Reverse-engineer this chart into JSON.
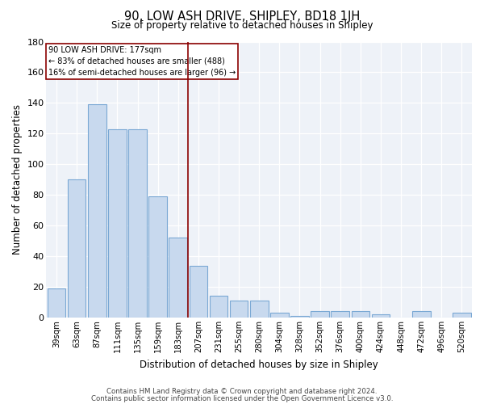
{
  "title": "90, LOW ASH DRIVE, SHIPLEY, BD18 1JH",
  "subtitle": "Size of property relative to detached houses in Shipley",
  "xlabel": "Distribution of detached houses by size in Shipley",
  "ylabel": "Number of detached properties",
  "categories": [
    "39sqm",
    "63sqm",
    "87sqm",
    "111sqm",
    "135sqm",
    "159sqm",
    "183sqm",
    "207sqm",
    "231sqm",
    "255sqm",
    "280sqm",
    "304sqm",
    "328sqm",
    "352sqm",
    "376sqm",
    "400sqm",
    "424sqm",
    "448sqm",
    "472sqm",
    "496sqm",
    "520sqm"
  ],
  "values": [
    19,
    90,
    139,
    123,
    123,
    79,
    52,
    34,
    14,
    11,
    11,
    3,
    1,
    4,
    4,
    4,
    2,
    0,
    4,
    0,
    3
  ],
  "bar_color": "#c8d9ee",
  "bar_edge_color": "#7aa8d4",
  "highlight_color": "#8b0000",
  "property_label": "90 LOW ASH DRIVE: 177sqm",
  "annotation_line1": "← 83% of detached houses are smaller (488)",
  "annotation_line2": "16% of semi-detached houses are larger (96) →",
  "vline_x_pos": 6.5,
  "ylim": [
    0,
    180
  ],
  "yticks": [
    0,
    20,
    40,
    60,
    80,
    100,
    120,
    140,
    160,
    180
  ],
  "footer_line1": "Contains HM Land Registry data © Crown copyright and database right 2024.",
  "footer_line2": "Contains public sector information licensed under the Open Government Licence v3.0.",
  "background_color": "#ffffff",
  "plot_background_color": "#eef2f8"
}
